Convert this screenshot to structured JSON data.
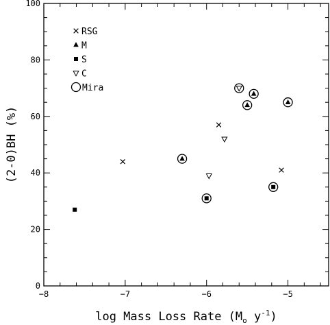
{
  "chart_data": {
    "type": "scatter",
    "xlabel": "log Mass Loss Rate (M",
    "xlabel_sub": "o",
    "xlabel_unit": " y",
    "xlabel_sup": "-1",
    "xlabel_close": ")",
    "ylabel": "(2-0)BH (%)",
    "xlim": [
      -8,
      -4.5
    ],
    "ylim": [
      0,
      100
    ],
    "x_major_ticks": [
      -8,
      -7,
      -6,
      -5
    ],
    "x_minor_step": 0.2,
    "y_major_ticks": [
      0,
      20,
      40,
      60,
      80,
      100
    ],
    "y_minor_step": 5,
    "legend": {
      "position": "top-left",
      "entries": [
        {
          "label": "RSG",
          "symbol": "cross"
        },
        {
          "label": "M",
          "symbol": "triangle-up"
        },
        {
          "label": "S",
          "symbol": "square"
        },
        {
          "label": "C",
          "symbol": "triangle-down"
        },
        {
          "label": "Mira",
          "symbol": "circle"
        }
      ]
    },
    "series": [
      {
        "name": "RSG",
        "symbol": "cross",
        "points": [
          {
            "x": -7.03,
            "y": 44,
            "mira": false
          },
          {
            "x": -5.85,
            "y": 57,
            "mira": false
          },
          {
            "x": -5.08,
            "y": 41,
            "mira": false
          }
        ]
      },
      {
        "name": "M",
        "symbol": "triangle-up",
        "points": [
          {
            "x": -6.3,
            "y": 45,
            "mira": true
          },
          {
            "x": -5.5,
            "y": 64,
            "mira": true
          },
          {
            "x": -5.42,
            "y": 68,
            "mira": true
          },
          {
            "x": -5.0,
            "y": 65,
            "mira": true
          }
        ]
      },
      {
        "name": "S",
        "symbol": "square",
        "points": [
          {
            "x": -7.62,
            "y": 27,
            "mira": false
          },
          {
            "x": -6.0,
            "y": 31,
            "mira": true
          },
          {
            "x": -5.18,
            "y": 35,
            "mira": true
          }
        ]
      },
      {
        "name": "C",
        "symbol": "triangle-down",
        "points": [
          {
            "x": -5.97,
            "y": 39,
            "mira": false
          },
          {
            "x": -5.78,
            "y": 52,
            "mira": false
          },
          {
            "x": -5.6,
            "y": 70,
            "mira": true
          }
        ]
      }
    ]
  }
}
